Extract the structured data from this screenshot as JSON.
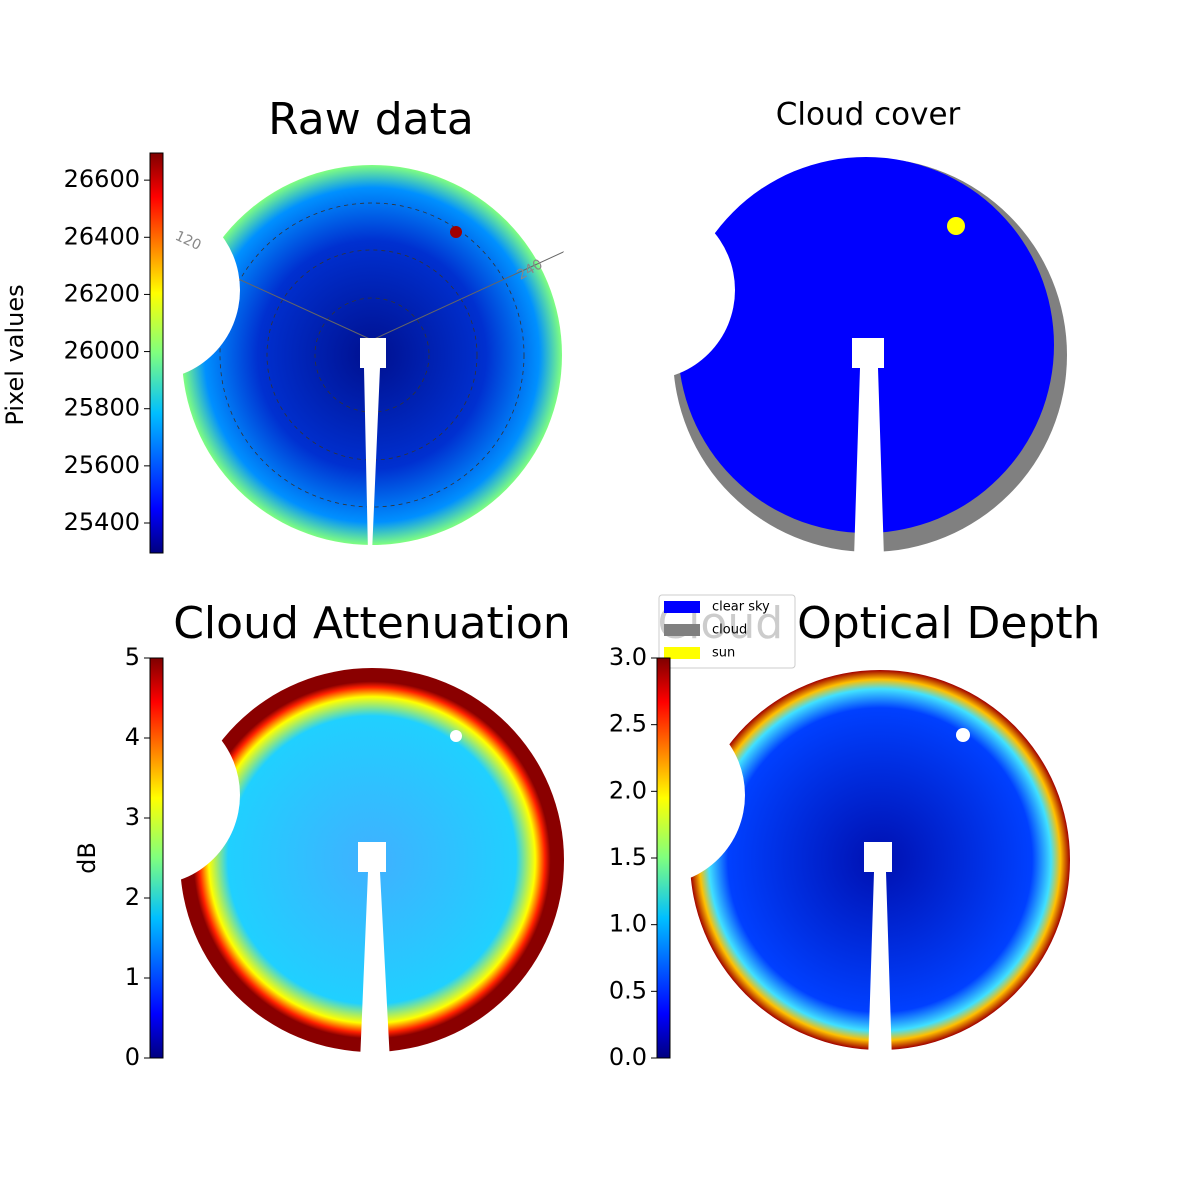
{
  "chart_data": [
    {
      "type": "image",
      "title": "Raw data",
      "ylabel": "Pixel values",
      "colormap": "jet",
      "ylim": [
        25295,
        26695
      ],
      "yticks": [
        25400,
        25600,
        25800,
        26000,
        26200,
        26400,
        26600
      ],
      "angle_ticks": [
        120,
        240
      ]
    },
    {
      "type": "image",
      "title": "Cloud cover",
      "legend": [
        {
          "name": "clear sky",
          "color": "#0000ff"
        },
        {
          "name": "cloud",
          "color": "#808080"
        },
        {
          "name": "sun",
          "color": "#ffff00"
        }
      ]
    },
    {
      "type": "image",
      "title": "Cloud Attenuation",
      "ylabel": "dB",
      "colormap": "jet",
      "ylim": [
        0,
        5
      ],
      "yticks": [
        0,
        1,
        2,
        3,
        4,
        5
      ]
    },
    {
      "type": "image",
      "title": "Cloud Optical Depth",
      "colormap": "jet",
      "ylim": [
        0,
        3
      ],
      "yticks": [
        {
          "value": 0,
          "label": "0.0"
        },
        {
          "value": 0.5,
          "label": "0.5"
        },
        {
          "value": 1,
          "label": "1.0"
        },
        {
          "value": 1.5,
          "label": "1.5"
        },
        {
          "value": 2,
          "label": "2.0"
        },
        {
          "value": 2.5,
          "label": "2.5"
        },
        {
          "value": 3,
          "label": "3.0"
        }
      ]
    }
  ]
}
